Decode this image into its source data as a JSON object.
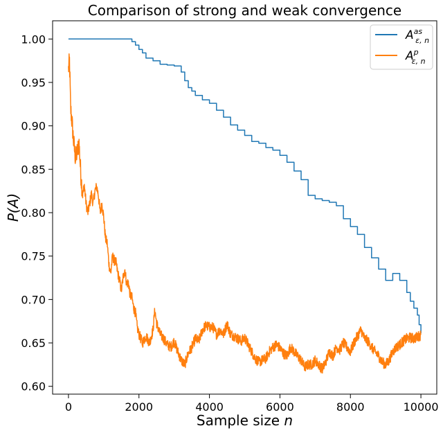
{
  "chart_data": {
    "type": "line",
    "title": "Comparison of strong and weak convergence",
    "xlabel": "Sample size n",
    "ylabel": "P(A)",
    "xlim": [
      -450,
      10450
    ],
    "ylim": [
      0.591,
      1.021
    ],
    "xticks": [
      0,
      2000,
      4000,
      6000,
      8000,
      10000
    ],
    "xtick_labels": [
      "0",
      "2000",
      "4000",
      "6000",
      "8000",
      "10000"
    ],
    "yticks": [
      0.6,
      0.65,
      0.7,
      0.75,
      0.8,
      0.85,
      0.9,
      0.95,
      1.0
    ],
    "ytick_labels": [
      "0.60",
      "0.65",
      "0.70",
      "0.75",
      "0.80",
      "0.85",
      "0.90",
      "0.95",
      "1.00"
    ],
    "grid": false,
    "legend_position": "top-right",
    "series": [
      {
        "name": "A^as_ε,n",
        "legend_main": "A",
        "legend_sup": "as",
        "legend_sub": "ε, n",
        "color": "#1f77b4",
        "step": true,
        "x": [
          0,
          1700,
          1800,
          1900,
          2000,
          2100,
          2200,
          2400,
          2600,
          2800,
          3000,
          3200,
          3300,
          3400,
          3500,
          3600,
          3800,
          4000,
          4200,
          4400,
          4600,
          4800,
          5000,
          5200,
          5400,
          5600,
          5800,
          6000,
          6200,
          6400,
          6600,
          6800,
          7000,
          7200,
          7400,
          7600,
          7800,
          8000,
          8200,
          8400,
          8600,
          8800,
          9000,
          9200,
          9400,
          9600,
          9700,
          9800,
          9900,
          9950,
          10000
        ],
        "y": [
          1.0,
          1.0,
          0.997,
          0.993,
          0.988,
          0.984,
          0.978,
          0.975,
          0.971,
          0.97,
          0.969,
          0.962,
          0.952,
          0.944,
          0.94,
          0.935,
          0.93,
          0.926,
          0.918,
          0.91,
          0.901,
          0.895,
          0.889,
          0.882,
          0.88,
          0.875,
          0.872,
          0.866,
          0.858,
          0.848,
          0.838,
          0.82,
          0.816,
          0.814,
          0.812,
          0.808,
          0.793,
          0.784,
          0.775,
          0.76,
          0.748,
          0.735,
          0.722,
          0.73,
          0.722,
          0.708,
          0.698,
          0.69,
          0.682,
          0.671,
          0.661
        ]
      },
      {
        "name": "A^p_ε,n",
        "legend_main": "A",
        "legend_sup": "p",
        "legend_sub": "ε, n",
        "color": "#ff7f0e",
        "step": false,
        "noisy": true,
        "x": [
          0,
          30,
          60,
          100,
          150,
          200,
          250,
          300,
          350,
          400,
          450,
          500,
          550,
          600,
          650,
          700,
          750,
          800,
          850,
          900,
          950,
          1000,
          1050,
          1100,
          1150,
          1200,
          1250,
          1300,
          1350,
          1400,
          1450,
          1500,
          1550,
          1600,
          1650,
          1700,
          1750,
          1800,
          1850,
          1900,
          1950,
          2000,
          2100,
          2200,
          2300,
          2400,
          2450,
          2500,
          2600,
          2700,
          2800,
          2900,
          3000,
          3100,
          3200,
          3300,
          3400,
          3500,
          3600,
          3700,
          3800,
          3900,
          4000,
          4100,
          4200,
          4300,
          4400,
          4500,
          4600,
          4700,
          4800,
          4900,
          5000,
          5100,
          5200,
          5300,
          5400,
          5500,
          5600,
          5700,
          5800,
          5900,
          6000,
          6100,
          6200,
          6300,
          6400,
          6500,
          6600,
          6700,
          6800,
          6900,
          7000,
          7100,
          7200,
          7300,
          7400,
          7500,
          7600,
          7700,
          7800,
          7900,
          8000,
          8100,
          8200,
          8300,
          8400,
          8500,
          8600,
          8700,
          8800,
          8900,
          9000,
          9100,
          9200,
          9300,
          9400,
          9500,
          9600,
          9700,
          9800,
          9900,
          10000
        ],
        "y": [
          0.965,
          0.975,
          0.92,
          0.905,
          0.88,
          0.862,
          0.87,
          0.88,
          0.845,
          0.82,
          0.832,
          0.81,
          0.8,
          0.81,
          0.822,
          0.81,
          0.825,
          0.83,
          0.82,
          0.8,
          0.81,
          0.795,
          0.77,
          0.765,
          0.74,
          0.73,
          0.75,
          0.745,
          0.742,
          0.73,
          0.722,
          0.71,
          0.725,
          0.735,
          0.718,
          0.72,
          0.705,
          0.702,
          0.69,
          0.685,
          0.668,
          0.66,
          0.65,
          0.658,
          0.65,
          0.665,
          0.688,
          0.673,
          0.66,
          0.655,
          0.648,
          0.645,
          0.652,
          0.64,
          0.63,
          0.625,
          0.638,
          0.645,
          0.655,
          0.652,
          0.665,
          0.67,
          0.668,
          0.668,
          0.66,
          0.665,
          0.66,
          0.672,
          0.66,
          0.658,
          0.655,
          0.652,
          0.656,
          0.648,
          0.64,
          0.632,
          0.628,
          0.63,
          0.632,
          0.64,
          0.645,
          0.648,
          0.644,
          0.638,
          0.635,
          0.645,
          0.64,
          0.635,
          0.63,
          0.622,
          0.625,
          0.625,
          0.63,
          0.625,
          0.62,
          0.628,
          0.64,
          0.635,
          0.645,
          0.642,
          0.65,
          0.645,
          0.64,
          0.65,
          0.658,
          0.665,
          0.655,
          0.652,
          0.645,
          0.64,
          0.635,
          0.628,
          0.625,
          0.63,
          0.64,
          0.645,
          0.648,
          0.652,
          0.655,
          0.656,
          0.655,
          0.657,
          0.659
        ]
      }
    ]
  }
}
